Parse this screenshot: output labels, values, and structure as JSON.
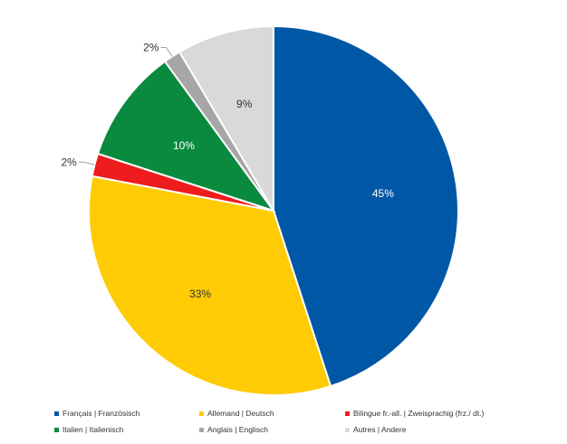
{
  "chart_data": {
    "type": "pie",
    "title": "",
    "slices": [
      {
        "label": "Français | Französisch",
        "value": 45,
        "value_label": "45%",
        "color": "#0057A6",
        "label_color": "#ffffff"
      },
      {
        "label": "Allemand | Deutsch",
        "value": 33,
        "value_label": "33%",
        "color": "#FFCB05",
        "label_color": "#333333"
      },
      {
        "label": "Bilingue fr.-all. | Zweisprachig (frz./ dt.)",
        "value": 2,
        "value_label": "2%",
        "color": "#EE1C1C",
        "label_color": "#333333"
      },
      {
        "label": "Italien | Italienisch",
        "value": 10,
        "value_label": "10%",
        "color": "#0A8A3F",
        "label_color": "#ffffff"
      },
      {
        "label": "Anglais | Englisch",
        "value": 1.5,
        "value_label": "2%",
        "color": "#A6A6A6",
        "label_color": "#333333"
      },
      {
        "label": "Autres | Andere",
        "value": 8.5,
        "value_label": "9%",
        "color": "#D9D9D9",
        "label_color": "#333333"
      }
    ],
    "legend_position": "bottom"
  }
}
